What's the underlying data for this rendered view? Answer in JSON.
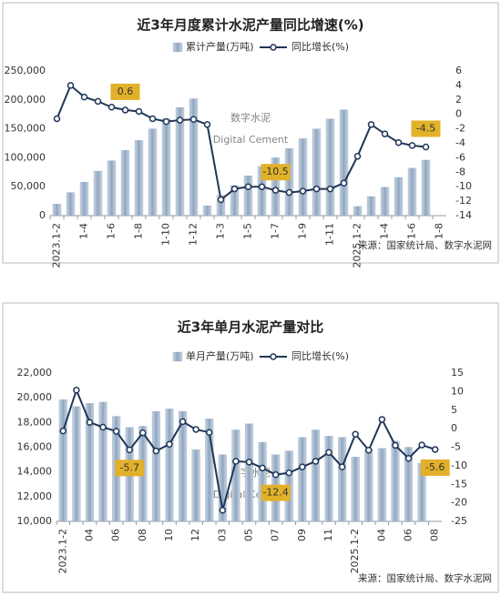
{
  "chart_data": [
    {
      "type": "bar-line",
      "title": "近3年月度累计水泥产量同比增速(%)",
      "categories": [
        "2023.1-2",
        null,
        "1-4",
        null,
        "1-6",
        null,
        "1-8",
        null,
        "1-10",
        null,
        "1-12",
        null,
        "1-3",
        null,
        "1-5",
        null,
        "1-7",
        null,
        "1-9",
        null,
        "1-11",
        null,
        "2025.1-2",
        null,
        "1-4",
        null,
        "1-6",
        null,
        "1-8"
      ],
      "series": [
        {
          "name": "累计产量(万吨)",
          "color": "#8fa6c0",
          "values": [
            20000,
            40000,
            58000,
            77000,
            95000,
            113000,
            130000,
            150000,
            168000,
            187000,
            202000,
            17000,
            35000,
            52000,
            69000,
            85000,
            100000,
            116000,
            133000,
            150000,
            167000,
            183000,
            16000,
            33000,
            49000,
            66000,
            82000,
            96000,
            null
          ]
        },
        {
          "name": "同比增长(%)",
          "color": "#1f3657",
          "axis": "y2",
          "values": [
            -0.6,
            4.0,
            2.4,
            1.8,
            1.0,
            0.6,
            0.4,
            -0.6,
            -1.0,
            -0.8,
            -0.7,
            -1.4,
            -11.8,
            -10.3,
            -10.0,
            -10.0,
            -10.5,
            -10.8,
            -10.6,
            -10.3,
            -10.3,
            -9.5,
            -5.8,
            -1.4,
            -2.7,
            -3.9,
            -4.3,
            -4.5,
            null
          ],
          "value_labels": [
            null,
            null,
            null,
            null,
            null,
            "0.6",
            null,
            null,
            null,
            null,
            null,
            null,
            null,
            null,
            null,
            null,
            "-10.5",
            null,
            null,
            null,
            null,
            null,
            null,
            null,
            null,
            null,
            null,
            "-4.5",
            null
          ]
        }
      ],
      "ylim": [
        0,
        250000
      ],
      "yticks": [
        0,
        {
          "value": 50000,
          "label": "50,000"
        },
        {
          "value": 100000,
          "label": "100,000"
        },
        {
          "value": 150000,
          "label": "150,000"
        },
        {
          "value": 200000,
          "label": "200,000"
        },
        {
          "value": 250000,
          "label": "250,000"
        }
      ],
      "y2lim": [
        -14,
        6
      ],
      "y2ticks": [
        -14,
        -12,
        -10,
        -8,
        -6,
        -4,
        -2,
        0,
        2,
        4,
        6
      ],
      "source": "来源：国家统计局、数字水泥网",
      "watermark": "数字水泥",
      "watermark_sub": "Digital Cement"
    },
    {
      "type": "bar-line",
      "title": "近3年单月水泥产量对比",
      "categories": [
        "2023.1-2",
        null,
        "04",
        null,
        "06",
        null,
        "08",
        null,
        "10",
        null,
        "12",
        null,
        "03",
        null,
        "05",
        null,
        "07",
        null,
        "09",
        null,
        "11",
        null,
        "2025.1-2",
        null,
        "04",
        null,
        "06",
        null,
        "08"
      ],
      "series": [
        {
          "name": "单月产量(万吨)",
          "color": "#8fa6c0",
          "values": [
            19850,
            19300,
            19550,
            19650,
            18500,
            17600,
            17700,
            18900,
            19100,
            18900,
            15800,
            18300,
            15400,
            17400,
            17900,
            16400,
            15400,
            15700,
            16800,
            17400,
            16900,
            16800,
            15200,
            15800,
            15900,
            16500,
            16000,
            14700,
            null
          ]
        },
        {
          "name": "同比增长(%)",
          "color": "#1f3657",
          "axis": "y2",
          "values": [
            -0.6,
            10.4,
            1.7,
            0.4,
            -0.7,
            -5.7,
            -1.1,
            -6.0,
            -4.2,
            1.9,
            -0.2,
            -1.0,
            -22.0,
            -8.8,
            -9.0,
            -10.6,
            -12.4,
            -11.9,
            -10.3,
            -8.8,
            -6.4,
            -10.3,
            -1.5,
            -5.8,
            2.5,
            -4.5,
            -8.0,
            -4.4,
            -5.6
          ],
          "value_labels": [
            null,
            null,
            null,
            null,
            null,
            "-5.7",
            null,
            null,
            null,
            null,
            null,
            null,
            null,
            null,
            null,
            null,
            "-12.4",
            null,
            null,
            null,
            null,
            null,
            null,
            null,
            null,
            null,
            null,
            null,
            "-5.6"
          ]
        }
      ],
      "ylim": [
        10000,
        22000
      ],
      "yticks": [
        {
          "value": 10000,
          "label": "10,000"
        },
        {
          "value": 12000,
          "label": "12,000"
        },
        {
          "value": 14000,
          "label": "14,000"
        },
        {
          "value": 16000,
          "label": "16,000"
        },
        {
          "value": 18000,
          "label": "18,000"
        },
        {
          "value": 20000,
          "label": "20,000"
        },
        {
          "value": 22000,
          "label": "22,000"
        }
      ],
      "y2lim": [
        -25,
        15
      ],
      "y2ticks": [
        -25,
        -20,
        -15,
        -10,
        -5,
        0,
        5,
        10,
        15
      ],
      "source": "来源：国家统计局、数字水泥网",
      "watermark": "数字水泥",
      "watermark_sub": "Digital Cement"
    }
  ]
}
